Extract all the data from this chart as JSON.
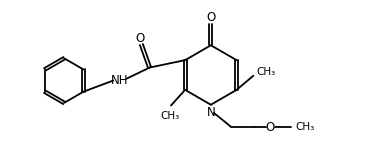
{
  "bg_color": "#ffffff",
  "line_color": "#000000",
  "line_width": 1.3,
  "font_size": 8.5,
  "figsize": [
    3.66,
    1.5
  ],
  "dpi": 100,
  "xlim": [
    0,
    9.5
  ],
  "ylim": [
    0,
    4.0
  ]
}
